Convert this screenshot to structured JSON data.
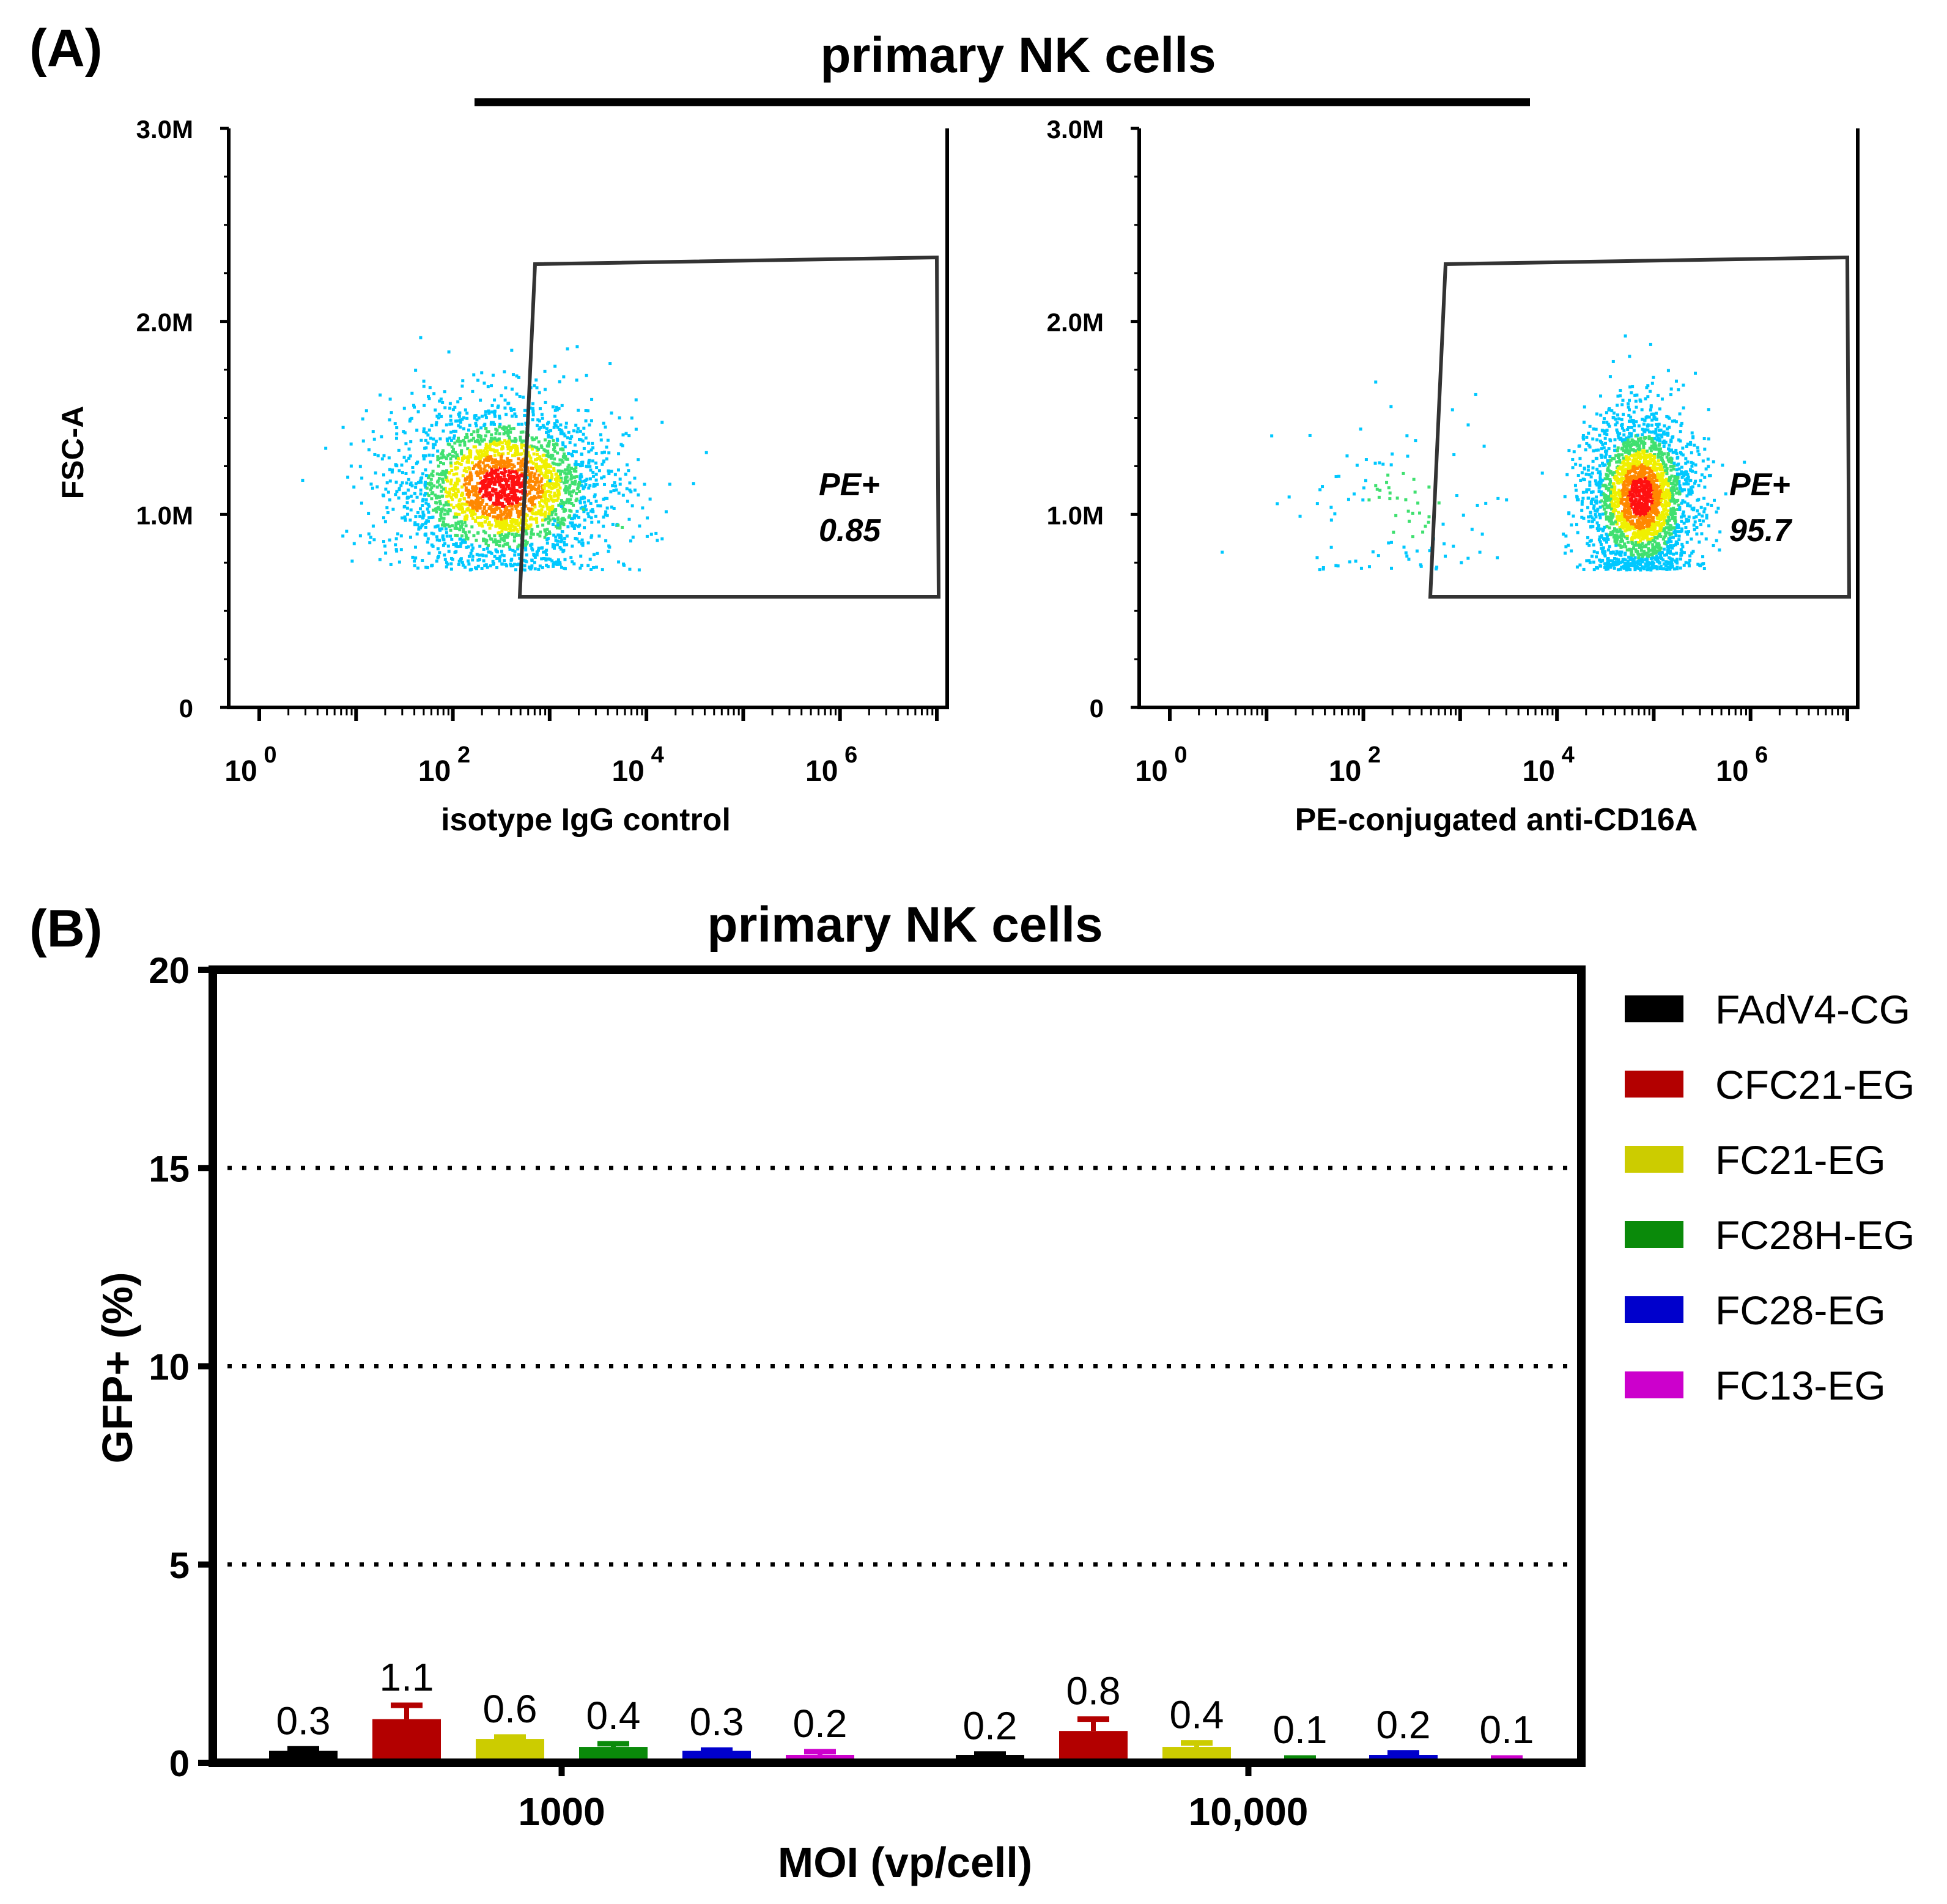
{
  "colors": {
    "ink": "#000000"
  },
  "panel_a": {
    "label": "(A)",
    "title": "primary NK cells",
    "y_axis_label": "FSC-A",
    "y_ticks": [
      "0",
      "1.0M",
      "2.0M",
      "3.0M"
    ],
    "x_ticks": [
      "10",
      "0",
      "10",
      "2",
      "10",
      "4",
      "10",
      "6"
    ],
    "plots": [
      {
        "x_label": "isotype IgG control",
        "gate_name": "PE+",
        "gate_value": "0.85"
      },
      {
        "x_label": "PE-conjugated anti-CD16A",
        "gate_name": "PE+",
        "gate_value": "95.7"
      }
    ]
  },
  "chart_data": [
    {
      "type": "scatter",
      "title": "primary NK cells",
      "subtitle": "isotype IgG control",
      "xlabel": "isotype IgG control",
      "ylabel": "FSC-A",
      "x_scale": "log10",
      "xlim": [
        1,
        10000000
      ],
      "ylim": [
        0,
        3000000
      ],
      "gate": {
        "name": "PE+",
        "percent": 0.85
      },
      "populations": [
        {
          "name": "main",
          "center_log10_x": 2.5,
          "center_y": 1150000,
          "spread_log10_x": 0.55,
          "spread_y": 220000,
          "share": 0.99
        },
        {
          "name": "gated",
          "center_log10_x": 3.5,
          "center_y": 950000,
          "spread_log10_x": 0.4,
          "spread_y": 150000,
          "share": 0.0085
        }
      ]
    },
    {
      "type": "scatter",
      "title": "primary NK cells",
      "subtitle": "PE-conjugated anti-CD16A",
      "xlabel": "PE-conjugated anti-CD16A",
      "ylabel": "FSC-A",
      "x_scale": "log10",
      "xlim": [
        1,
        10000000
      ],
      "ylim": [
        0,
        3000000
      ],
      "gate": {
        "name": "PE+",
        "percent": 95.7
      },
      "populations": [
        {
          "name": "negative",
          "center_log10_x": 2.4,
          "center_y": 1050000,
          "spread_log10_x": 0.6,
          "spread_y": 250000,
          "share": 0.043
        },
        {
          "name": "CD16A+",
          "center_log10_x": 4.85,
          "center_y": 1100000,
          "spread_log10_x": 0.28,
          "spread_y": 220000,
          "share": 0.957
        }
      ]
    },
    {
      "type": "bar",
      "label": "(B)",
      "title": "primary NK cells",
      "xlabel": "MOI (vp/cell)",
      "ylabel": "GFP+ (%)",
      "ylim": [
        0,
        20
      ],
      "y_ticks": [
        "0",
        "5",
        "10",
        "15",
        "20"
      ],
      "gridlines": [
        5,
        10,
        15
      ],
      "categories": [
        "1000",
        "10,000"
      ],
      "series": [
        {
          "name": "FAdV4-CG",
          "color": "#000000",
          "values": [
            0.3,
            0.2
          ],
          "errors": [
            0.05,
            0.02
          ],
          "labels": [
            "0.3",
            "0.2"
          ]
        },
        {
          "name": "CFC21-EG",
          "color": "#b30000",
          "values": [
            1.1,
            0.8
          ],
          "errors": [
            0.35,
            0.3
          ],
          "labels": [
            "1.1",
            "0.8"
          ]
        },
        {
          "name": "FC21-EG",
          "color": "#cccc00",
          "values": [
            0.6,
            0.4
          ],
          "errors": [
            0.05,
            0.1
          ],
          "labels": [
            "0.6",
            "0.4"
          ]
        },
        {
          "name": "FC28H-EG",
          "color": "#0a8a0a",
          "values": [
            0.4,
            0.1
          ],
          "errors": [
            0.08,
            0.02
          ],
          "labels": [
            "0.4",
            "0.1"
          ]
        },
        {
          "name": "FC28-EG",
          "color": "#0000cc",
          "values": [
            0.3,
            0.2
          ],
          "errors": [
            0.02,
            0.05
          ],
          "labels": [
            "0.3",
            "0.2"
          ]
        },
        {
          "name": "FC13-EG",
          "color": "#cc00cc",
          "values": [
            0.2,
            0.1
          ],
          "errors": [
            0.08,
            0.02
          ],
          "labels": [
            "0.2",
            "0.1"
          ]
        }
      ],
      "legend_position": "right"
    }
  ]
}
